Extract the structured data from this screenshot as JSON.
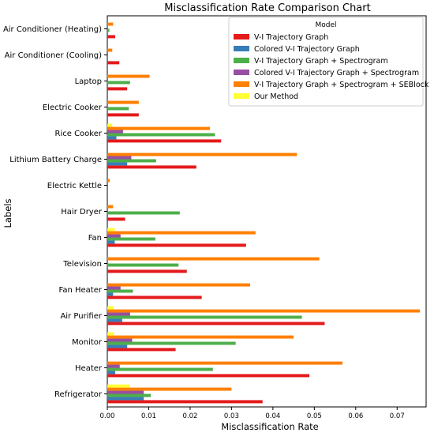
{
  "chart_data": {
    "type": "bar",
    "orientation": "horizontal",
    "title": "Misclassification Rate Comparison Chart",
    "xlabel": "Misclassification Rate",
    "ylabel": "Labels",
    "xlim": [
      0,
      0.077
    ],
    "xticks": [
      "0.00",
      "0.01",
      "0.02",
      "0.03",
      "0.04",
      "0.05",
      "0.06",
      "0.07"
    ],
    "grid": false,
    "legend": {
      "title": "Model",
      "placement": "top-right"
    },
    "categories": [
      "Air Conditioner (Heating)",
      "Air Conditioner (Cooling)",
      "Laptop",
      "Electric Cooker",
      "Rice Cooker",
      "Lithium Battery Charge",
      "Electric Kettle",
      "Hair Dryer",
      "Fan",
      "Television",
      "Fan Heater",
      "Air Purifier",
      "Monitor",
      "Heater",
      "Refrigerator"
    ],
    "series": [
      {
        "name": "V-I Trajectory Graph",
        "color": "#e41a1c",
        "values": [
          0.0019,
          0.0029,
          0.0048,
          0.0076,
          0.0275,
          0.0215,
          0.0,
          0.0043,
          0.0335,
          0.0192,
          0.0228,
          0.0525,
          0.0165,
          0.0488,
          0.0375
        ]
      },
      {
        "name": "Colored V-I Trajectory Graph",
        "color": "#377eb8",
        "values": [
          0.0,
          0.0,
          0.0,
          0.0,
          0.0022,
          0.0048,
          0.0,
          0.0,
          0.0018,
          0.0,
          0.0014,
          0.0036,
          0.0048,
          0.0019,
          0.0088
        ]
      },
      {
        "name": "V-I Trajectory Graph + Spectrogram",
        "color": "#4daf4a",
        "values": [
          0.0005,
          0.0,
          0.0055,
          0.0052,
          0.026,
          0.0118,
          0.0,
          0.0175,
          0.0116,
          0.0172,
          0.0062,
          0.047,
          0.031,
          0.0255,
          0.0105
        ]
      },
      {
        "name": "Colored V-I Trajectory Graph + Spectrogram",
        "color": "#984ea3",
        "values": [
          0.0,
          0.0,
          0.0,
          0.0,
          0.0038,
          0.0058,
          0.0,
          0.0,
          0.0032,
          0.0,
          0.0032,
          0.0055,
          0.006,
          0.003,
          0.0088
        ]
      },
      {
        "name": "V-I Trajectory Graph + Spectrogram + SEBlock",
        "color": "#ff7f00",
        "values": [
          0.0014,
          0.0012,
          0.0102,
          0.0076,
          0.0248,
          0.0458,
          0.0006,
          0.0014,
          0.0358,
          0.0512,
          0.0345,
          0.0755,
          0.045,
          0.0568,
          0.03
        ]
      },
      {
        "name": "Our Method",
        "color": "#ffff33",
        "values": [
          0.0,
          0.0,
          0.0,
          0.0,
          0.0012,
          0.0,
          0.0,
          0.0,
          0.0018,
          0.0,
          0.0,
          0.0016,
          0.0016,
          0.0,
          0.0055
        ]
      }
    ]
  }
}
